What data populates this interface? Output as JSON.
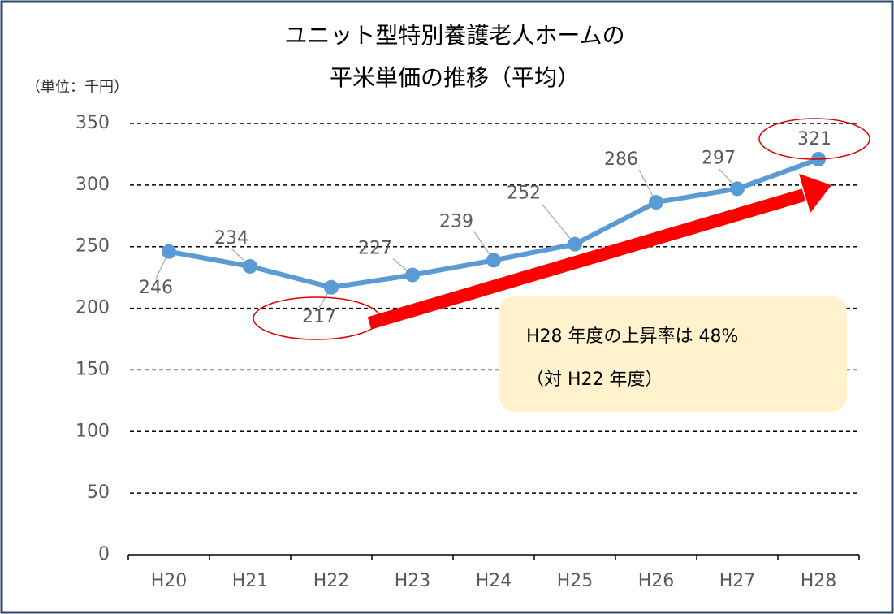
{
  "chart_data": {
    "type": "line",
    "title": [
      "ユニット型特別養護老人ホームの",
      "平米単価の推移（平均）"
    ],
    "unit_label": "（単位：千円）",
    "categories": [
      "H20",
      "H21",
      "H22",
      "H23",
      "H24",
      "H25",
      "H26",
      "H27",
      "H28"
    ],
    "series": [
      {
        "name": "平米単価",
        "color": "#5b9bd5",
        "values": [
          246,
          234,
          217,
          227,
          239,
          252,
          286,
          297,
          321
        ]
      }
    ],
    "ylim": [
      0,
      350
    ],
    "yticks": [
      0,
      50,
      100,
      150,
      200,
      250,
      300,
      350
    ],
    "grid": true,
    "annotation": [
      "H28 年度の上昇率は 48%",
      "（対 H22 年度）"
    ]
  }
}
